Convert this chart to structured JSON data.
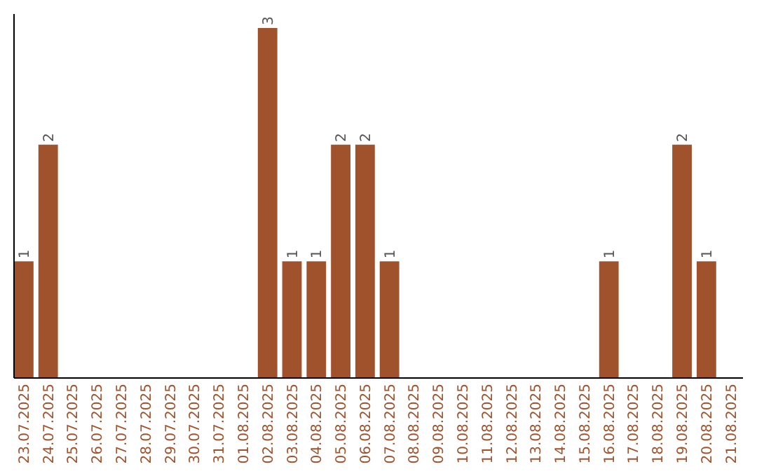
{
  "chart_data": {
    "type": "bar",
    "categories": [
      "23.07.2025",
      "24.07.2025",
      "25.07.2025",
      "26.07.2025",
      "27.07.2025",
      "28.07.2025",
      "29.07.2025",
      "30.07.2025",
      "31.07.2025",
      "01.08.2025",
      "02.08.2025",
      "03.08.2025",
      "04.08.2025",
      "05.08.2025",
      "06.08.2025",
      "07.08.2025",
      "08.08.2025",
      "09.08.2025",
      "10.08.2025",
      "11.08.2025",
      "12.08.2025",
      "13.08.2025",
      "14.08.2025",
      "15.08.2025",
      "16.08.2025",
      "17.08.2025",
      "18.08.2025",
      "19.08.2025",
      "20.08.2025",
      "21.08.2025"
    ],
    "values": [
      1,
      2,
      0,
      0,
      0,
      0,
      0,
      0,
      0,
      0,
      3,
      1,
      1,
      2,
      2,
      1,
      0,
      0,
      0,
      0,
      0,
      0,
      0,
      0,
      1,
      0,
      0,
      2,
      1,
      0
    ],
    "value_labels": [
      "1",
      "2",
      null,
      null,
      null,
      null,
      null,
      null,
      null,
      null,
      "3",
      "1",
      "1",
      "2",
      "2",
      "1",
      null,
      null,
      null,
      null,
      null,
      null,
      null,
      null,
      "1",
      null,
      null,
      "2",
      "1",
      null
    ],
    "color": "#a0522d",
    "grid": false
  }
}
